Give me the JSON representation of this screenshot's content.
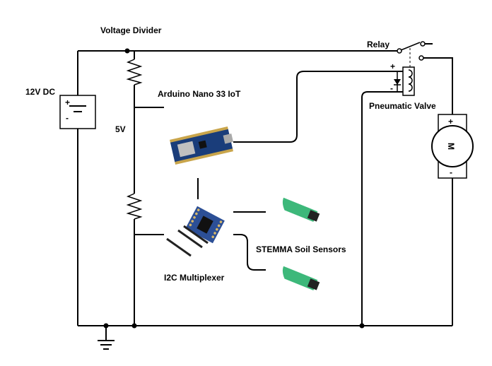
{
  "labels": {
    "voltage_divider": "Voltage Divider",
    "relay": "Relay",
    "supply": "12V DC",
    "arduino": "Arduino Nano 33 IoT",
    "five_volt": "5V",
    "pneumatic_valve": "Pneumatic Valve",
    "soil_sensors": "STEMMA Soil Sensors",
    "multiplexer": "I2C Multiplexer",
    "motor_symbol": "M",
    "plus": "+",
    "minus": "-",
    "valve_plus": "+",
    "valve_minus": "-",
    "motor_plus": "+",
    "motor_minus": "-"
  },
  "colors": {
    "wire": "#000000",
    "arduino_board": "#1a3d7a",
    "multiplexer_board": "#2c4f96",
    "sensor_board": "#3db87a",
    "sensor_electronics": "#222222"
  }
}
